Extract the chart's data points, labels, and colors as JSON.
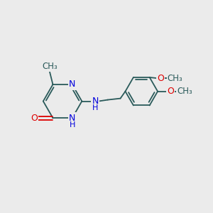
{
  "background_color": "#ebebeb",
  "bond_color": "#2a5a5a",
  "nitrogen_color": "#0000dd",
  "oxygen_color": "#dd0000",
  "line_width": 1.3,
  "figsize": [
    3.0,
    3.0
  ],
  "dpi": 100,
  "xlim": [
    -1,
    11
  ],
  "ylim": [
    -1,
    11
  ]
}
